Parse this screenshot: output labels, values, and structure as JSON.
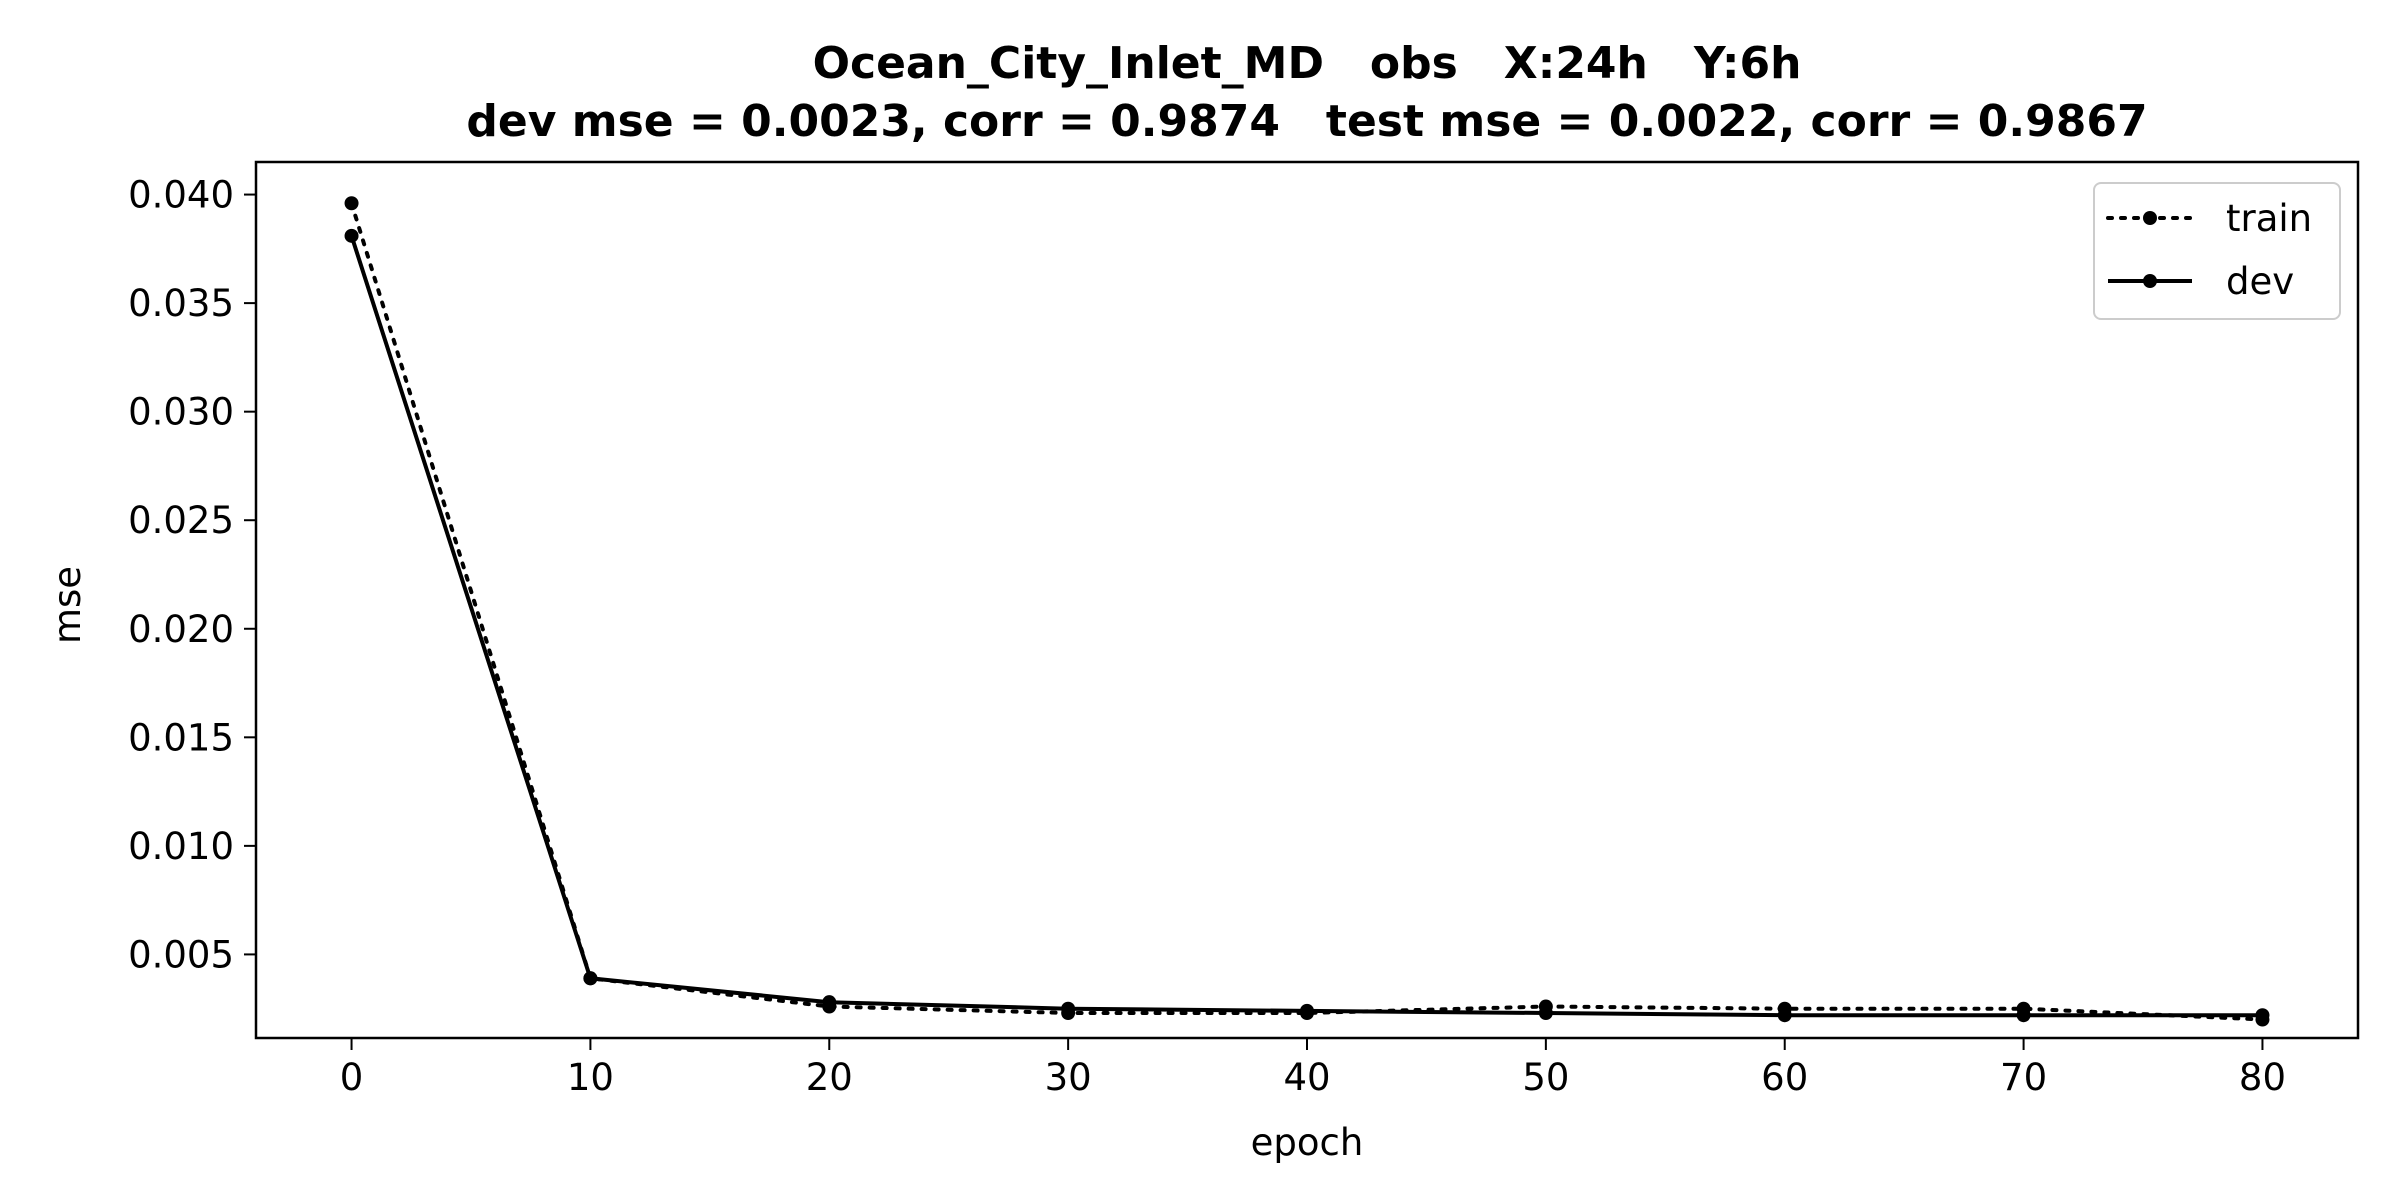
{
  "chart_data": {
    "type": "line",
    "title_line1": "Ocean_City_Inlet_MD   obs   X:24h   Y:6h",
    "title_line2": "dev mse = 0.0023, corr = 0.9874   test mse = 0.0022, corr = 0.9867",
    "xlabel": "epoch",
    "ylabel": "mse",
    "xlim": [
      -4,
      84
    ],
    "ylim": [
      0.00115,
      0.0415
    ],
    "xticks": [
      0,
      10,
      20,
      30,
      40,
      50,
      60,
      70,
      80
    ],
    "yticks": [
      0.005,
      0.01,
      0.015,
      0.02,
      0.025,
      0.03,
      0.035,
      0.04
    ],
    "ytick_labels": [
      "0.005",
      "0.010",
      "0.015",
      "0.020",
      "0.025",
      "0.030",
      "0.035",
      "0.040"
    ],
    "xtick_labels": [
      "0",
      "10",
      "20",
      "30",
      "40",
      "50",
      "60",
      "70",
      "80"
    ],
    "grid": false,
    "legend_position": "top-right",
    "x": [
      0,
      10,
      20,
      30,
      40,
      50,
      60,
      70,
      80
    ],
    "series": [
      {
        "name": "train",
        "style": "dotted",
        "color": "#000000",
        "values": [
          0.0396,
          0.0039,
          0.0026,
          0.0023,
          0.0023,
          0.0026,
          0.0025,
          0.0025,
          0.002
        ]
      },
      {
        "name": "dev",
        "style": "solid",
        "color": "#000000",
        "values": [
          0.0381,
          0.0039,
          0.0028,
          0.0025,
          0.0024,
          0.0023,
          0.0022,
          0.0022,
          0.0022
        ]
      }
    ]
  }
}
